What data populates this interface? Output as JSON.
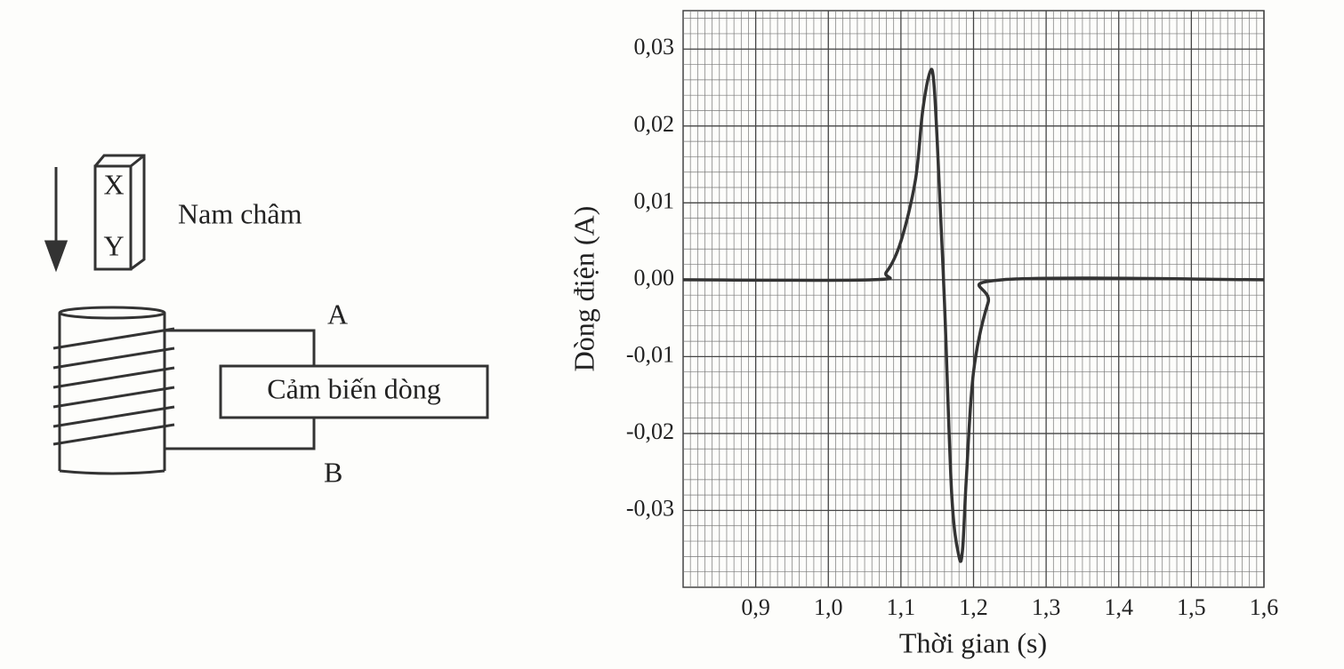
{
  "diagram": {
    "pole_top": "X",
    "pole_bottom": "Y",
    "magnet_label": "Nam châm",
    "terminal_a": "A",
    "terminal_b": "B",
    "sensor_label": "Cảm biến dòng"
  },
  "chart_data": {
    "type": "line",
    "x_label": "Thời gian (s)",
    "y_label": "Dòng điện (A)",
    "xlim": [
      0.8,
      1.6
    ],
    "ylim": [
      -0.04,
      0.035
    ],
    "xticks": [
      {
        "value": 0.9,
        "label": "0,9"
      },
      {
        "value": 1.0,
        "label": "1,0"
      },
      {
        "value": 1.1,
        "label": "1,1"
      },
      {
        "value": 1.2,
        "label": "1,2"
      },
      {
        "value": 1.3,
        "label": "1,3"
      },
      {
        "value": 1.4,
        "label": "1,4"
      },
      {
        "value": 1.5,
        "label": "1,5"
      },
      {
        "value": 1.6,
        "label": "1,6"
      }
    ],
    "yticks": [
      {
        "value": -0.03,
        "label": "-0,03"
      },
      {
        "value": -0.02,
        "label": "-0,02"
      },
      {
        "value": -0.01,
        "label": "-0,01"
      },
      {
        "value": 0,
        "label": "0,00"
      },
      {
        "value": 0.01,
        "label": "0,01"
      },
      {
        "value": 0.02,
        "label": "0,02"
      },
      {
        "value": 0.03,
        "label": "0,03"
      }
    ],
    "grid": true,
    "series": [
      {
        "color": "#333333",
        "x": [
          0.8,
          1.06,
          1.08,
          1.1,
          1.12,
          1.13,
          1.14,
          1.145,
          1.15,
          1.16,
          1.17,
          1.18,
          1.185,
          1.19,
          1.2,
          1.22,
          1.24,
          1.6
        ],
        "values": [
          0,
          0,
          0.001,
          0.005,
          0.013,
          0.022,
          0.027,
          0.026,
          0.018,
          -0.003,
          -0.028,
          -0.036,
          -0.035,
          -0.026,
          -0.012,
          -0.003,
          0,
          0
        ]
      }
    ]
  }
}
